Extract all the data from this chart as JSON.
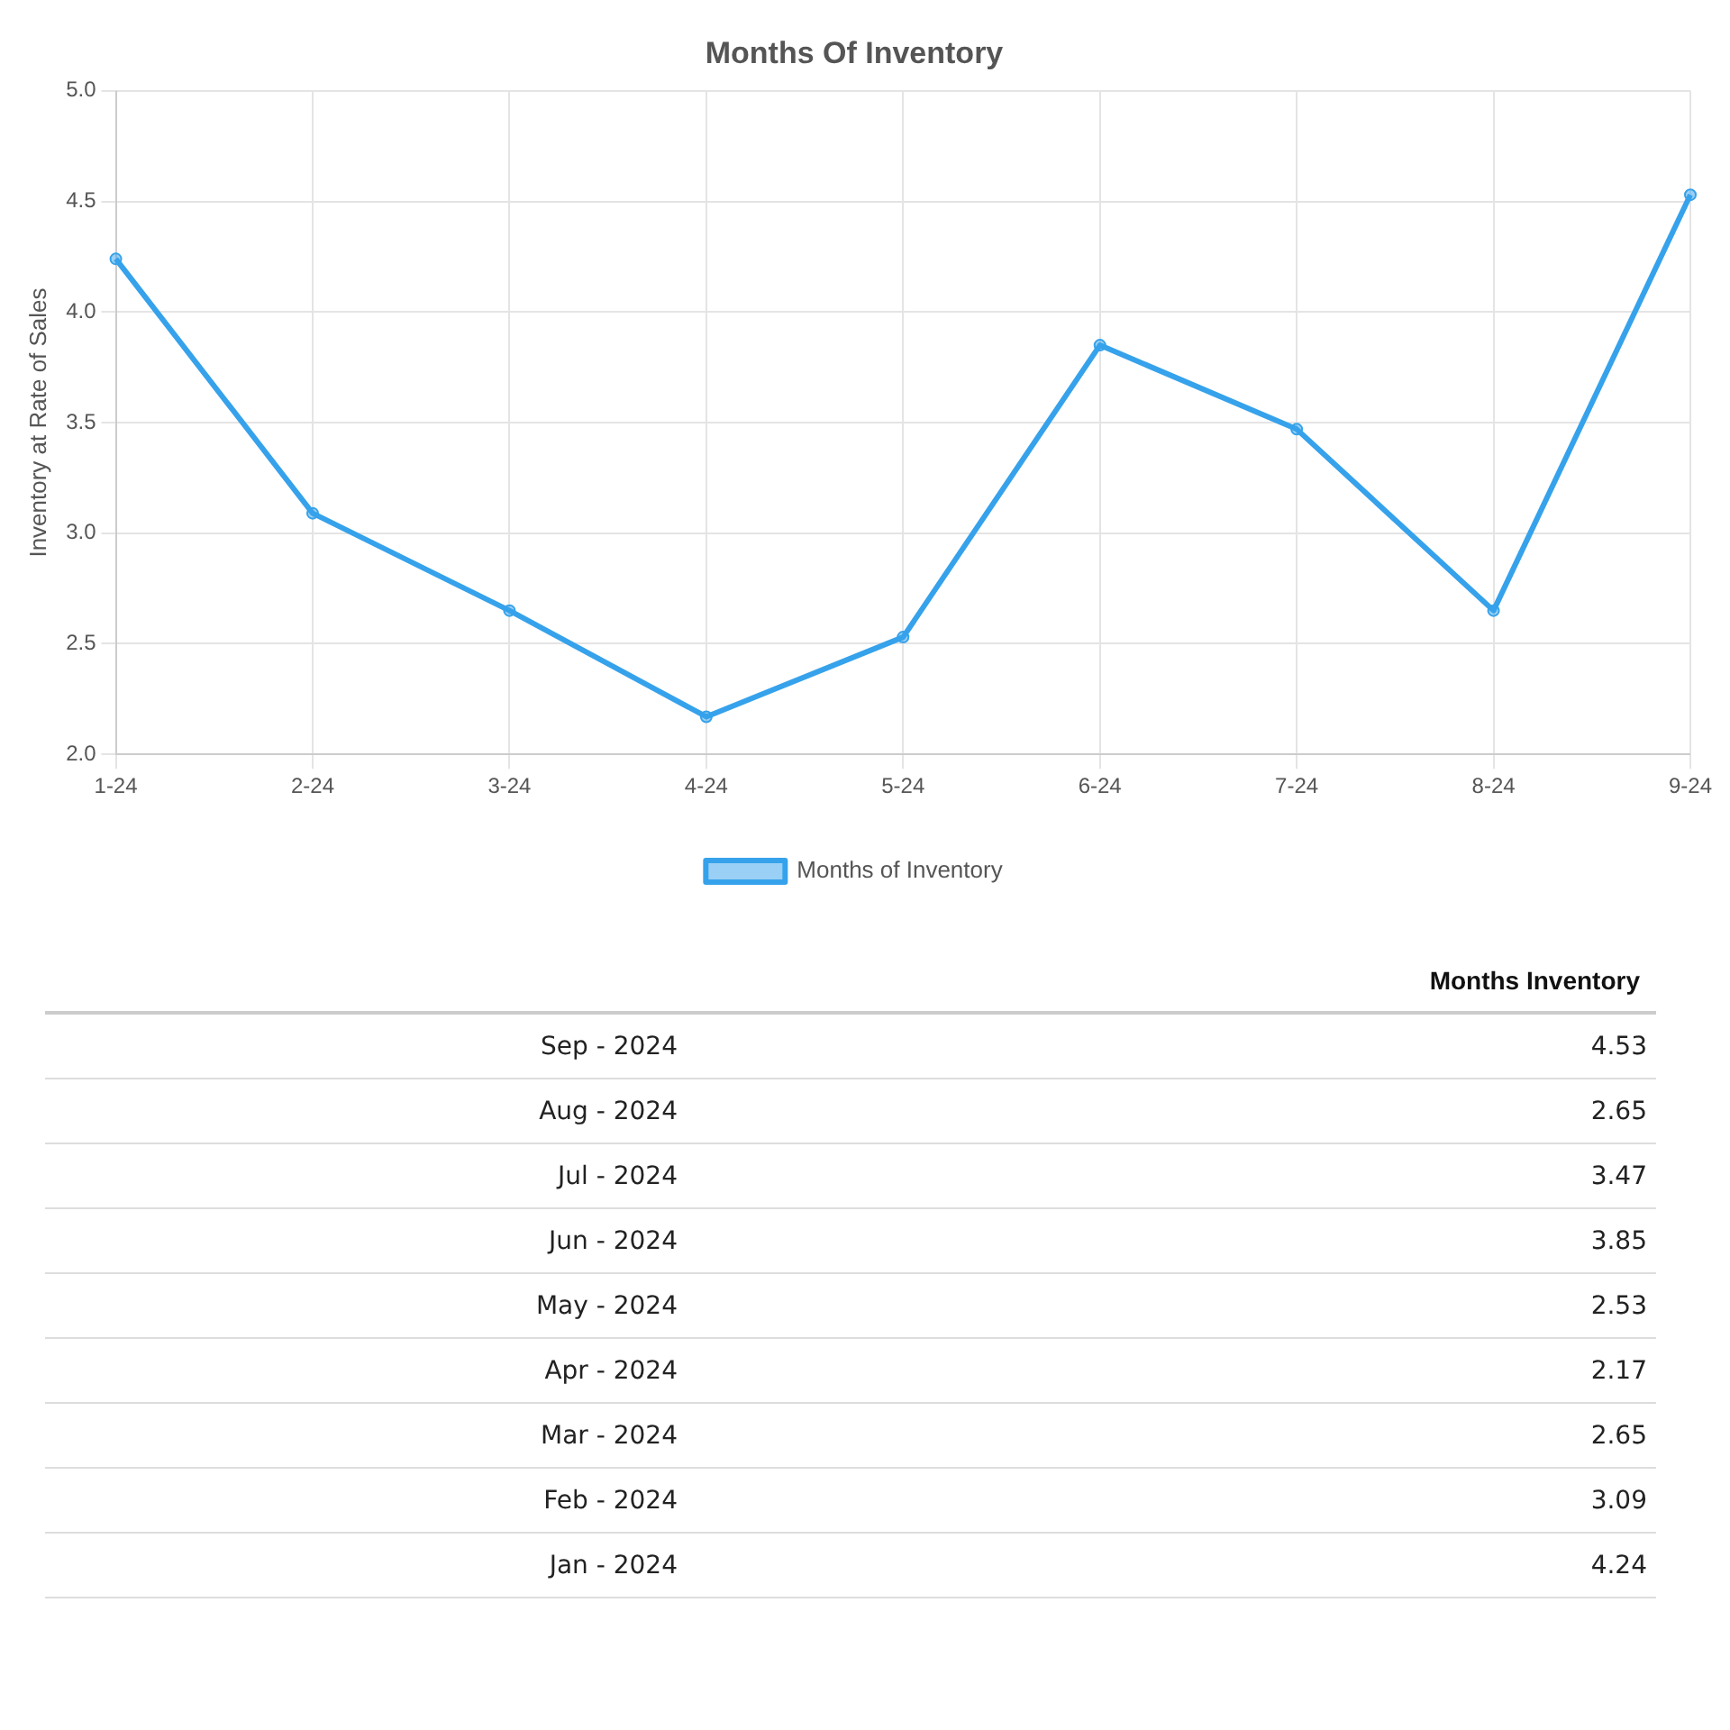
{
  "chart_data": [
    {
      "type": "line",
      "title": "Months Of Inventory",
      "ylabel": "Inventory at Rate of Sales",
      "categories": [
        "1-24",
        "2-24",
        "3-24",
        "4-24",
        "5-24",
        "6-24",
        "7-24",
        "8-24",
        "9-24"
      ],
      "series": [
        {
          "name": "Months of Inventory",
          "color": "#36a2eb",
          "values": [
            4.24,
            3.09,
            2.65,
            2.17,
            2.53,
            3.85,
            3.47,
            2.65,
            4.53
          ]
        }
      ],
      "ylim": [
        2,
        5
      ],
      "yticks": [
        {
          "value": 2,
          "label": "2.0"
        },
        {
          "value": 2.5,
          "label": "2.5"
        },
        {
          "value": 3,
          "label": "3.0"
        },
        {
          "value": 3.5,
          "label": "3.5"
        },
        {
          "value": 4,
          "label": "4.0"
        },
        {
          "value": 4.5,
          "label": "4.5"
        },
        {
          "value": 5,
          "label": "5.0"
        }
      ],
      "grid": true,
      "legend": "bottom",
      "marker": "circle"
    },
    {
      "type": "other",
      "ylabel": "Months Inventory",
      "categories": [
        "Sep - 2024",
        "Aug - 2024",
        "Jul - 2024",
        "Jun - 2024",
        "May - 2024",
        "Apr - 2024",
        "Mar - 2024",
        "Feb - 2024",
        "Jan - 2024"
      ],
      "values": [
        4.53,
        2.65,
        3.47,
        3.85,
        2.53,
        2.17,
        2.65,
        3.09,
        4.24
      ],
      "data_labels": true
    }
  ]
}
